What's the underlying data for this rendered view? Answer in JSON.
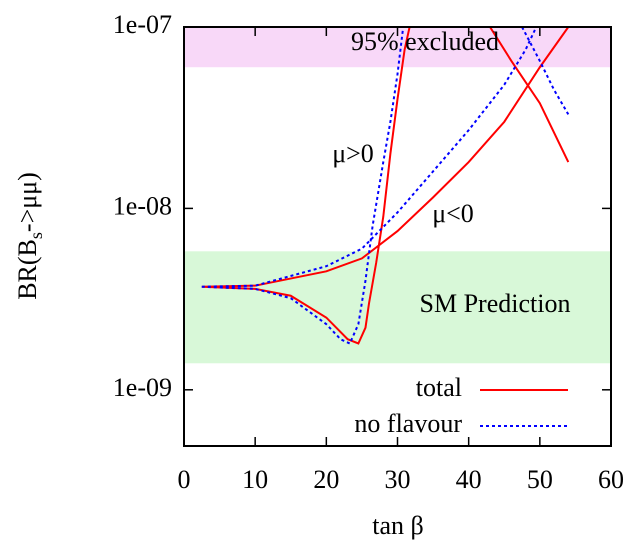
{
  "chart_data": {
    "type": "line",
    "xlabel": "tan β",
    "ylabel": [
      "BR(B",
      "s",
      "->μμ)"
    ],
    "log_y": true,
    "xlim": [
      0,
      60
    ],
    "xticks": [
      0,
      10,
      20,
      30,
      40,
      50,
      60
    ],
    "ylim": [
      4.9e-10,
      1e-07
    ],
    "yticks": [
      {
        "value": 1e-09,
        "label": "1e-09"
      },
      {
        "value": 1e-08,
        "label": "1e-08"
      },
      {
        "value": 1e-07,
        "label": "1e-07"
      }
    ],
    "bands": [
      {
        "label": "95% excluded",
        "range": [
          6e-08,
          1e-07
        ],
        "color": "#f8d8f8"
      },
      {
        "label": "SM Prediction",
        "range": [
          1.4e-09,
          5.8e-09
        ],
        "color": "#d8f8d8"
      }
    ],
    "annotations": [
      "μ>0",
      "μ<0"
    ],
    "legend": "bottom-right",
    "series": [
      {
        "name": "total",
        "color": "#ff0000",
        "dash": false,
        "x": [
          2.5,
          10,
          15,
          20,
          23,
          24.5,
          25.5,
          26,
          27,
          28,
          29,
          30,
          31,
          31.7,
          null,
          43,
          46,
          50,
          54,
          null,
          2.5,
          10,
          20,
          25,
          30,
          35,
          40,
          45,
          50,
          54
        ],
        "values": [
          3.7e-09,
          3.6e-09,
          3.3e-09,
          2.5e-09,
          1.9e-09,
          1.8e-09,
          2.2e-09,
          3e-09,
          5e-09,
          9e-09,
          2e-08,
          4e-08,
          7.5e-08,
          1e-07,
          null,
          1e-07,
          6.5e-08,
          3.8e-08,
          1.8e-08,
          null,
          3.7e-09,
          3.75e-09,
          4.5e-09,
          5.3e-09,
          7.5e-09,
          1.15e-08,
          1.8e-08,
          3e-08,
          6e-08,
          1e-07
        ]
      },
      {
        "name": "no flavour",
        "color": "#0000ff",
        "dash": true,
        "x": [
          2.5,
          10,
          15,
          20,
          22,
          23.3,
          24.5,
          25.5,
          26.5,
          28,
          29,
          30,
          30.8,
          null,
          47.5,
          50,
          52,
          54,
          null,
          2.5,
          10,
          20,
          25,
          30,
          35,
          40,
          45,
          48,
          49.5
        ],
        "values": [
          3.7e-09,
          3.6e-09,
          3.2e-09,
          2.3e-09,
          1.9e-09,
          1.8e-09,
          2.3e-09,
          4e-09,
          8e-09,
          1.8e-08,
          3e-08,
          5.5e-08,
          1e-07,
          null,
          1e-07,
          6.5e-08,
          4.5e-08,
          3.3e-08,
          null,
          3.7e-09,
          3.75e-09,
          4.8e-09,
          6e-09,
          9.5e-09,
          1.6e-08,
          2.7e-08,
          4.8e-08,
          7.5e-08,
          1e-07
        ]
      }
    ]
  }
}
